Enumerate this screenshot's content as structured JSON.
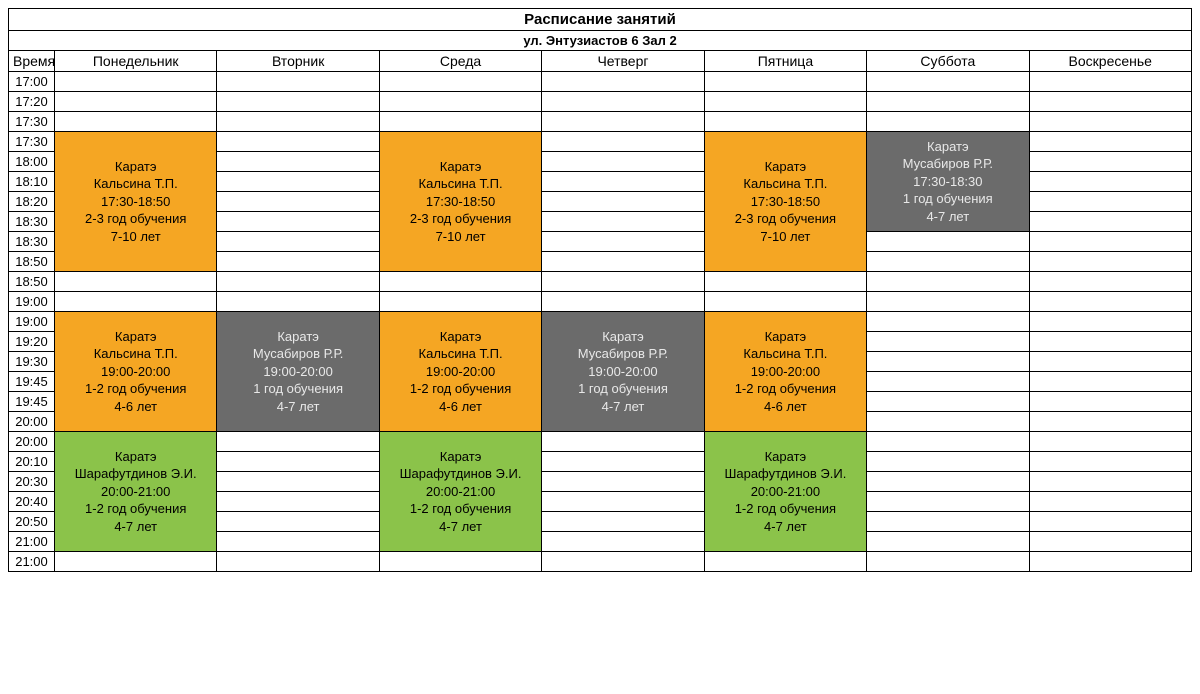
{
  "title": "Расписание занятий",
  "subtitle": "ул. Энтузиастов 6 Зал 2",
  "headers": {
    "time": "Время",
    "days": [
      "Понедельник",
      "Вторник",
      "Среда",
      "Четверг",
      "Пятница",
      "Суббота",
      "Воскресенье"
    ]
  },
  "times": [
    "17:00",
    "17:20",
    "17:30",
    "17:30",
    "18:00",
    "18:10",
    "18:20",
    "18:30",
    "18:30",
    "18:50",
    "18:50",
    "19:00",
    "19:00",
    "19:20",
    "19:30",
    "19:45",
    "19:45",
    "20:00",
    "20:00",
    "20:10",
    "20:30",
    "20:40",
    "20:50",
    "21:00",
    "21:00"
  ],
  "colors": {
    "orange": "#f5a623",
    "gray": "#6b6b6b",
    "green": "#8bc34a",
    "text_dark": "#000000",
    "text_light": "#e8e8e8",
    "border": "#000000",
    "background": "#ffffff"
  },
  "blocks": {
    "karate_kalsina_evening": {
      "lines": [
        "Каратэ",
        "Кальсина Т.П.",
        "17:30-18:50",
        "2-3 год обучения",
        "7-10 лет"
      ],
      "color": "orange",
      "text": "text_dark"
    },
    "karate_musabirov_sat": {
      "lines": [
        "Каратэ",
        "Мусабиров Р.Р.",
        "17:30-18:30",
        "1 год обучения",
        "4-7 лет"
      ],
      "color": "gray",
      "text": "text_light"
    },
    "karate_kalsina_19": {
      "lines": [
        "Каратэ",
        "Кальсина Т.П.",
        "19:00-20:00",
        "1-2 год обучения",
        "4-6 лет"
      ],
      "color": "orange",
      "text": "text_dark"
    },
    "karate_musabirov_19": {
      "lines": [
        "Каратэ",
        "Мусабиров Р.Р.",
        "19:00-20:00",
        "1 год обучения",
        "4-7 лет"
      ],
      "color": "gray",
      "text": "text_light"
    },
    "karate_sharaf_20": {
      "lines": [
        "Каратэ",
        "Шарафутдинов Э.И.",
        "20:00-21:00",
        "1-2 год обучения",
        "4-7 лет"
      ],
      "color": "green",
      "text": "text_dark"
    }
  },
  "layout": [
    {
      "row": 3,
      "cells": [
        {
          "day": 0,
          "block": "karate_kalsina_evening",
          "rowspan": 7
        },
        {
          "day": 2,
          "block": "karate_kalsina_evening",
          "rowspan": 7
        },
        {
          "day": 4,
          "block": "karate_kalsina_evening",
          "rowspan": 7
        },
        {
          "day": 5,
          "block": "karate_musabirov_sat",
          "rowspan": 5
        }
      ]
    },
    {
      "row": 12,
      "cells": [
        {
          "day": 0,
          "block": "karate_kalsina_19",
          "rowspan": 6
        },
        {
          "day": 1,
          "block": "karate_musabirov_19",
          "rowspan": 6
        },
        {
          "day": 2,
          "block": "karate_kalsina_19",
          "rowspan": 6
        },
        {
          "day": 3,
          "block": "karate_musabirov_19",
          "rowspan": 6
        },
        {
          "day": 4,
          "block": "karate_kalsina_19",
          "rowspan": 6
        }
      ]
    },
    {
      "row": 18,
      "cells": [
        {
          "day": 0,
          "block": "karate_sharaf_20",
          "rowspan": 6
        },
        {
          "day": 2,
          "block": "karate_sharaf_20",
          "rowspan": 6
        },
        {
          "day": 4,
          "block": "karate_sharaf_20",
          "rowspan": 6
        }
      ]
    }
  ]
}
